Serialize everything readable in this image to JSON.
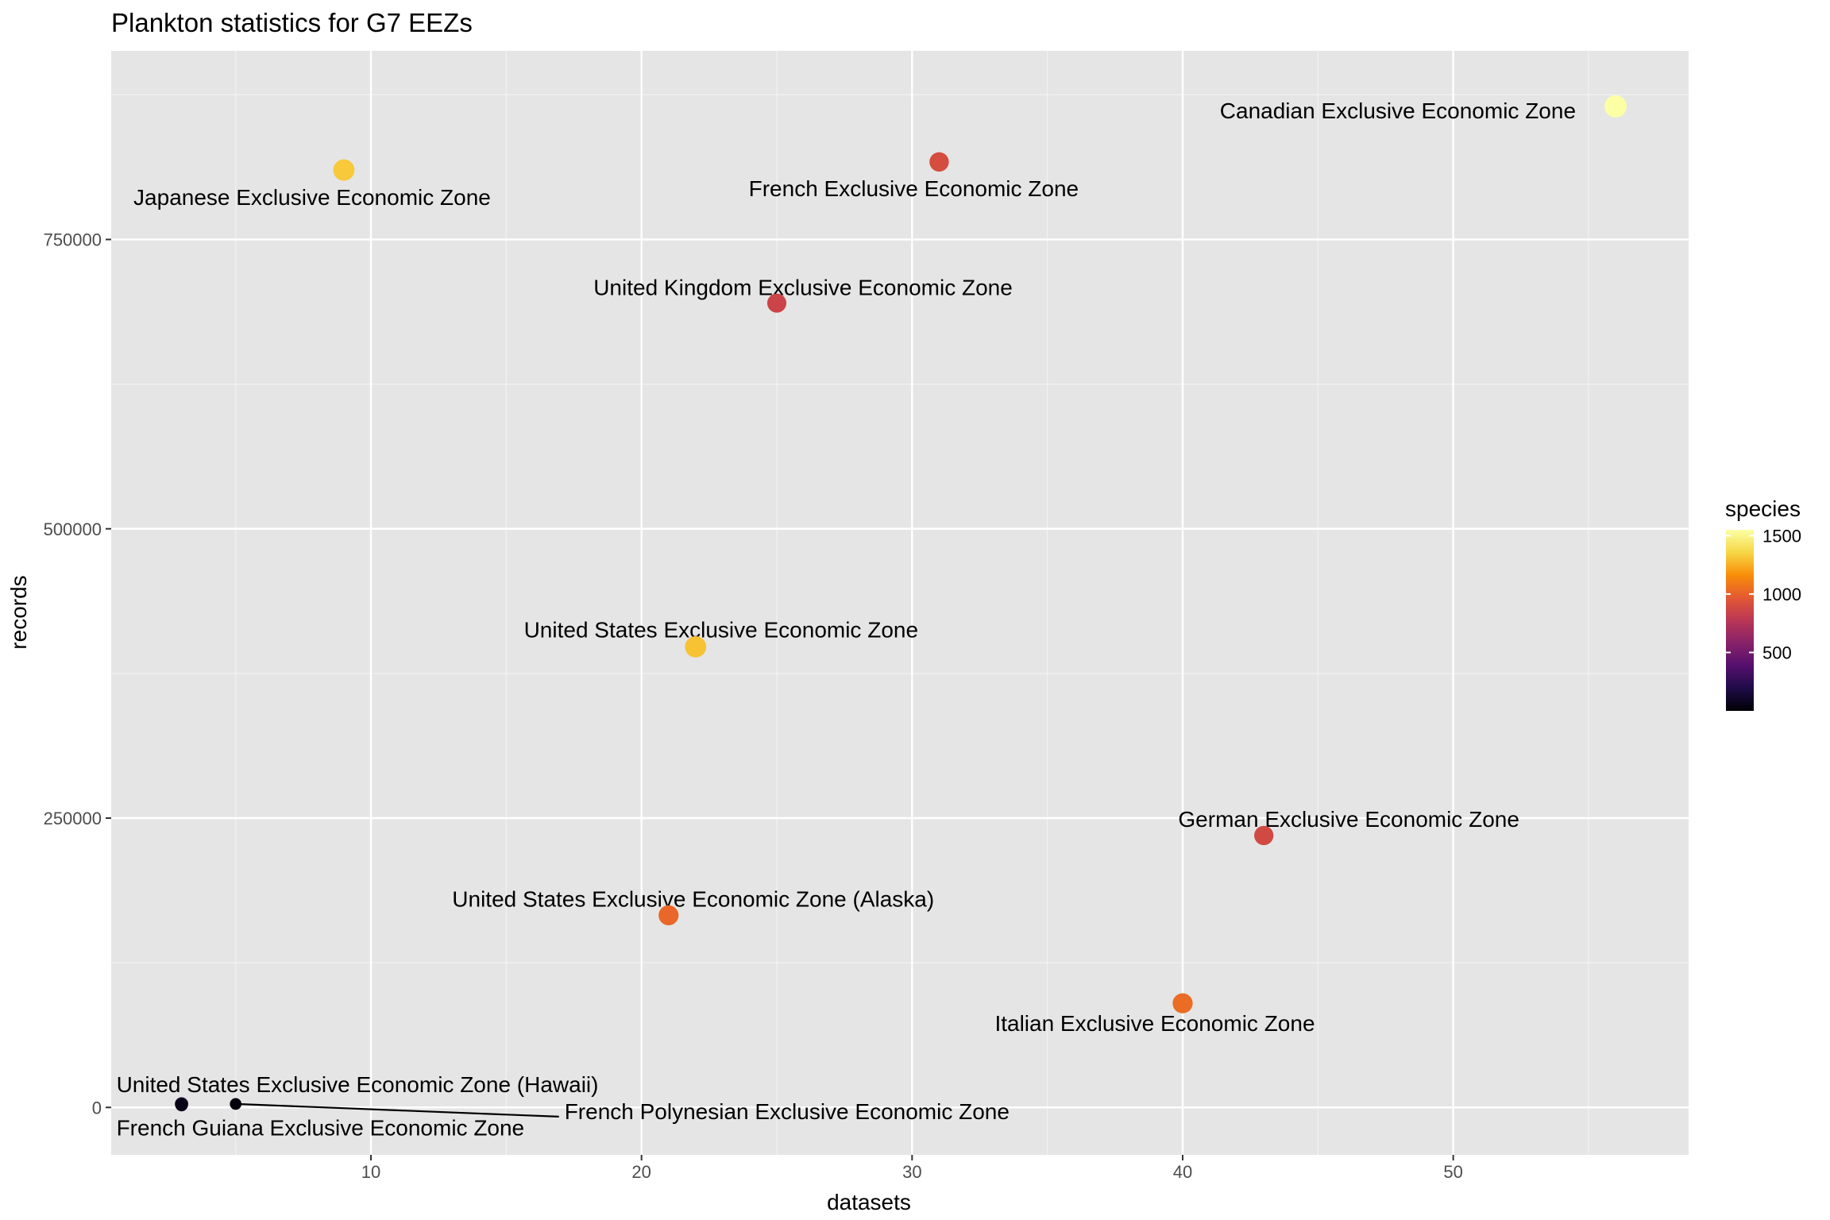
{
  "chart_data": {
    "type": "scatter",
    "title": "Plankton statistics for G7 EEZs",
    "xlabel": "datasets",
    "ylabel": "records",
    "xlim": [
      0.4,
      58.7
    ],
    "ylim": [
      -41000,
      913000
    ],
    "x_ticks": [
      10,
      20,
      30,
      40,
      50
    ],
    "y_ticks": [
      0,
      250000,
      500000,
      750000
    ],
    "grid": true,
    "legend": {
      "title": "species",
      "position": "right",
      "colorscale": "inferno",
      "range": [
        0,
        1550
      ],
      "ticks": [
        500,
        1000,
        1500
      ]
    },
    "points": [
      {
        "label": "Canadian Exclusive Economic Zone",
        "datasets": 56,
        "records": 865000,
        "species": 1550
      },
      {
        "label": "Japanese Exclusive Economic Zone",
        "datasets": 9,
        "records": 810000,
        "species": 1320
      },
      {
        "label": "French Exclusive Economic Zone",
        "datasets": 31,
        "records": 817000,
        "species": 900
      },
      {
        "label": "United Kingdom Exclusive Economic Zone",
        "datasets": 25,
        "records": 695000,
        "species": 850
      },
      {
        "label": "United States Exclusive Economic Zone",
        "datasets": 22,
        "records": 398000,
        "species": 1300
      },
      {
        "label": "German Exclusive Economic Zone",
        "datasets": 43,
        "records": 235000,
        "species": 880
      },
      {
        "label": "United States Exclusive Economic Zone (Alaska)",
        "datasets": 21,
        "records": 166000,
        "species": 1020
      },
      {
        "label": "Italian Exclusive Economic Zone",
        "datasets": 40,
        "records": 90000,
        "species": 1040
      },
      {
        "label": "United States Exclusive Economic Zone (Hawaii)",
        "datasets": 3,
        "records": 3000,
        "species": 100
      },
      {
        "label": "French Guiana Exclusive Economic Zone",
        "datasets": 3,
        "records": 2000,
        "species": 50
      },
      {
        "label": "French Polynesian Exclusive Economic Zone",
        "datasets": 5,
        "records": 3000,
        "species": 20
      }
    ]
  }
}
